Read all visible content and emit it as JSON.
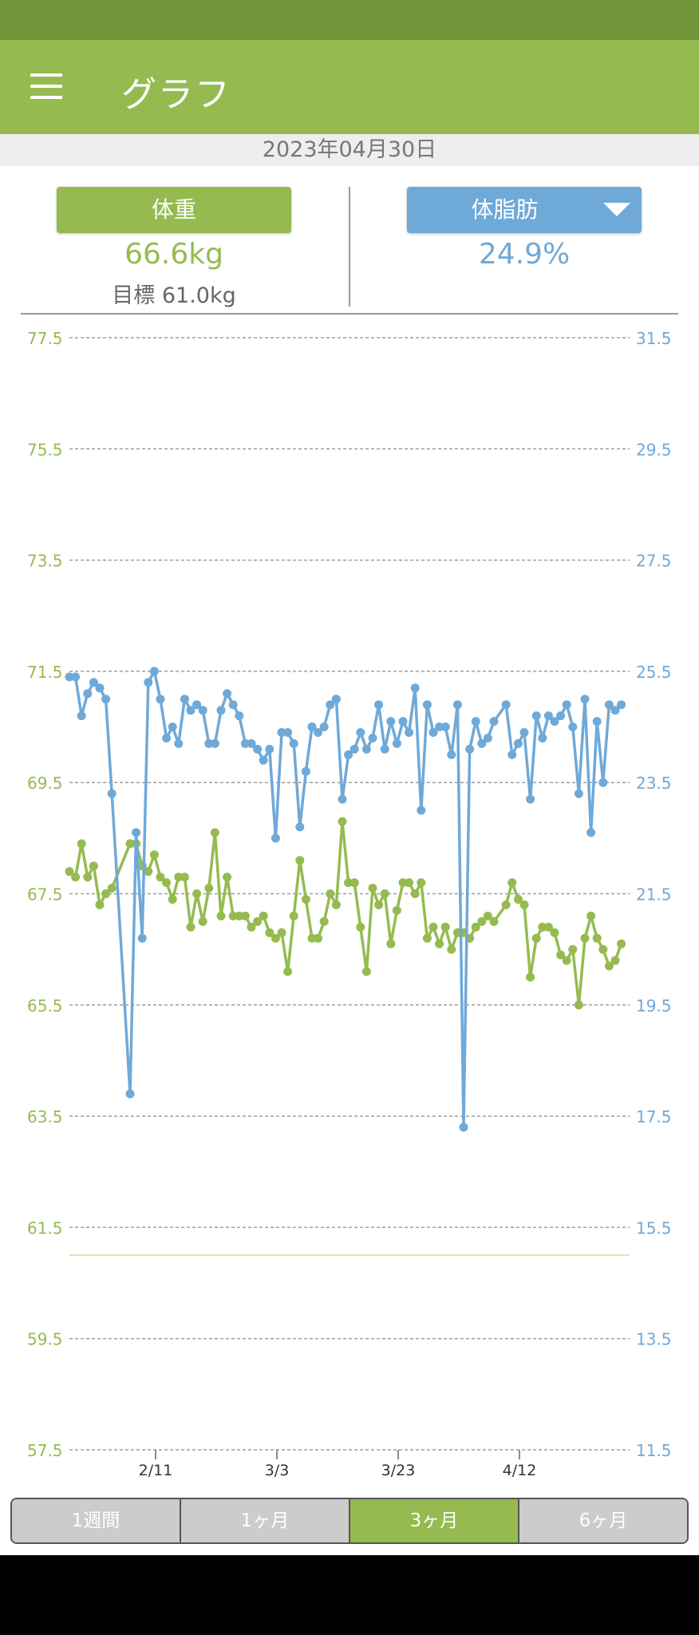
{
  "app": {
    "title": "グラフ"
  },
  "date": "2023年04月30日",
  "summary": {
    "weight": {
      "button_label": "体重",
      "value": "66.6kg",
      "goal": "目標 61.0kg"
    },
    "fat": {
      "button_label": "体脂肪",
      "value": "24.9%"
    }
  },
  "tabs": [
    {
      "label": "1週間",
      "active": false
    },
    {
      "label": "1ヶ月",
      "active": false
    },
    {
      "label": "3ヶ月",
      "active": true
    },
    {
      "label": "6ヶ月",
      "active": false
    }
  ],
  "colors": {
    "weight": "#95bb50",
    "fat": "#6fa9d8",
    "grid": "#9e9e9e"
  },
  "chart_data": {
    "type": "line",
    "left_axis": {
      "ticks": [
        "77.5",
        "75.5",
        "73.5",
        "71.5",
        "69.5",
        "67.5",
        "65.5",
        "63.5",
        "61.5",
        "59.5",
        "57.5"
      ],
      "range": [
        57.5,
        77.5
      ]
    },
    "right_axis": {
      "ticks": [
        "31.5",
        "29.5",
        "27.5",
        "25.5",
        "23.5",
        "21.5",
        "19.5",
        "17.5",
        "15.5",
        "13.5",
        "11.5"
      ],
      "range": [
        11.5,
        31.5
      ]
    },
    "x_ticks": [
      "2/11",
      "3/3",
      "3/23",
      "4/12"
    ],
    "goal_line": 61.0,
    "series": [
      {
        "axis": "left",
        "points": [
          [
            0,
            67.9
          ],
          [
            1,
            67.8
          ],
          [
            2,
            68.4
          ],
          [
            3,
            67.8
          ],
          [
            4,
            68.0
          ],
          [
            5,
            67.3
          ],
          [
            6,
            67.5
          ],
          [
            7,
            67.6
          ],
          [
            10,
            68.4
          ],
          [
            11,
            68.4
          ],
          [
            12,
            68.0
          ],
          [
            13,
            67.9
          ],
          [
            14,
            68.2
          ],
          [
            15,
            67.8
          ],
          [
            16,
            67.7
          ],
          [
            17,
            67.4
          ],
          [
            18,
            67.8
          ],
          [
            19,
            67.8
          ],
          [
            20,
            66.9
          ],
          [
            21,
            67.5
          ],
          [
            22,
            67.0
          ],
          [
            23,
            67.6
          ],
          [
            24,
            68.6
          ],
          [
            25,
            67.1
          ],
          [
            26,
            67.8
          ],
          [
            27,
            67.1
          ],
          [
            28,
            67.1
          ],
          [
            29,
            67.1
          ],
          [
            30,
            66.9
          ],
          [
            31,
            67.0
          ],
          [
            32,
            67.1
          ],
          [
            33,
            66.8
          ],
          [
            34,
            66.7
          ],
          [
            35,
            66.8
          ],
          [
            36,
            66.1
          ],
          [
            37,
            67.1
          ],
          [
            38,
            68.1
          ],
          [
            39,
            67.4
          ],
          [
            40,
            66.7
          ],
          [
            41,
            66.7
          ],
          [
            42,
            67.0
          ],
          [
            43,
            67.5
          ],
          [
            44,
            67.3
          ],
          [
            45,
            68.8
          ],
          [
            46,
            67.7
          ],
          [
            47,
            67.7
          ],
          [
            48,
            66.9
          ],
          [
            49,
            66.1
          ],
          [
            50,
            67.6
          ],
          [
            51,
            67.3
          ],
          [
            52,
            67.5
          ],
          [
            53,
            66.6
          ],
          [
            54,
            67.2
          ],
          [
            55,
            67.7
          ],
          [
            56,
            67.7
          ],
          [
            57,
            67.5
          ],
          [
            58,
            67.7
          ],
          [
            59,
            66.7
          ],
          [
            60,
            66.9
          ],
          [
            61,
            66.6
          ],
          [
            62,
            66.9
          ],
          [
            63,
            66.5
          ],
          [
            64,
            66.8
          ],
          [
            65,
            66.8
          ],
          [
            66,
            66.7
          ],
          [
            67,
            66.9
          ],
          [
            68,
            67.0
          ],
          [
            69,
            67.1
          ],
          [
            70,
            67.0
          ],
          [
            72,
            67.3
          ],
          [
            73,
            67.7
          ],
          [
            74,
            67.4
          ],
          [
            75,
            67.3
          ],
          [
            76,
            66.0
          ],
          [
            77,
            66.7
          ],
          [
            78,
            66.9
          ],
          [
            79,
            66.9
          ],
          [
            80,
            66.8
          ],
          [
            81,
            66.4
          ],
          [
            82,
            66.3
          ],
          [
            83,
            66.5
          ],
          [
            84,
            65.5
          ],
          [
            85,
            66.7
          ],
          [
            86,
            67.1
          ],
          [
            87,
            66.7
          ],
          [
            88,
            66.5
          ],
          [
            89,
            66.2
          ],
          [
            90,
            66.3
          ],
          [
            91,
            66.6
          ]
        ]
      },
      {
        "axis": "right",
        "points": [
          [
            0,
            25.4
          ],
          [
            1,
            25.4
          ],
          [
            2,
            24.7
          ],
          [
            3,
            25.1
          ],
          [
            4,
            25.3
          ],
          [
            5,
            25.2
          ],
          [
            6,
            25.0
          ],
          [
            7,
            23.3
          ],
          [
            10,
            17.9
          ],
          [
            11,
            22.6
          ],
          [
            12,
            20.7
          ],
          [
            13,
            25.3
          ],
          [
            14,
            25.5
          ],
          [
            15,
            25.0
          ],
          [
            16,
            24.3
          ],
          [
            17,
            24.5
          ],
          [
            18,
            24.2
          ],
          [
            19,
            25.0
          ],
          [
            20,
            24.8
          ],
          [
            21,
            24.9
          ],
          [
            22,
            24.8
          ],
          [
            23,
            24.2
          ],
          [
            24,
            24.2
          ],
          [
            25,
            24.8
          ],
          [
            26,
            25.1
          ],
          [
            27,
            24.9
          ],
          [
            28,
            24.7
          ],
          [
            29,
            24.2
          ],
          [
            30,
            24.2
          ],
          [
            31,
            24.1
          ],
          [
            32,
            23.9
          ],
          [
            33,
            24.1
          ],
          [
            34,
            22.5
          ],
          [
            35,
            24.4
          ],
          [
            36,
            24.4
          ],
          [
            37,
            24.2
          ],
          [
            38,
            22.7
          ],
          [
            39,
            23.7
          ],
          [
            40,
            24.5
          ],
          [
            41,
            24.4
          ],
          [
            42,
            24.5
          ],
          [
            43,
            24.9
          ],
          [
            44,
            25.0
          ],
          [
            45,
            23.2
          ],
          [
            46,
            24.0
          ],
          [
            47,
            24.1
          ],
          [
            48,
            24.4
          ],
          [
            49,
            24.1
          ],
          [
            50,
            24.3
          ],
          [
            51,
            24.9
          ],
          [
            52,
            24.1
          ],
          [
            53,
            24.6
          ],
          [
            54,
            24.2
          ],
          [
            55,
            24.6
          ],
          [
            56,
            24.4
          ],
          [
            57,
            25.2
          ],
          [
            58,
            23.0
          ],
          [
            59,
            24.9
          ],
          [
            60,
            24.4
          ],
          [
            61,
            24.5
          ],
          [
            62,
            24.5
          ],
          [
            63,
            24.0
          ],
          [
            64,
            24.9
          ],
          [
            65,
            17.3
          ],
          [
            66,
            24.1
          ],
          [
            67,
            24.6
          ],
          [
            68,
            24.2
          ],
          [
            69,
            24.3
          ],
          [
            70,
            24.6
          ],
          [
            72,
            24.9
          ],
          [
            73,
            24.0
          ],
          [
            74,
            24.2
          ],
          [
            75,
            24.4
          ],
          [
            76,
            23.2
          ],
          [
            77,
            24.7
          ],
          [
            78,
            24.3
          ],
          [
            79,
            24.7
          ],
          [
            80,
            24.6
          ],
          [
            81,
            24.7
          ],
          [
            82,
            24.9
          ],
          [
            83,
            24.5
          ],
          [
            84,
            23.3
          ],
          [
            85,
            25.0
          ],
          [
            86,
            22.6
          ],
          [
            87,
            24.6
          ],
          [
            88,
            23.5
          ],
          [
            89,
            24.9
          ],
          [
            90,
            24.8
          ],
          [
            91,
            24.9
          ]
        ]
      }
    ]
  }
}
